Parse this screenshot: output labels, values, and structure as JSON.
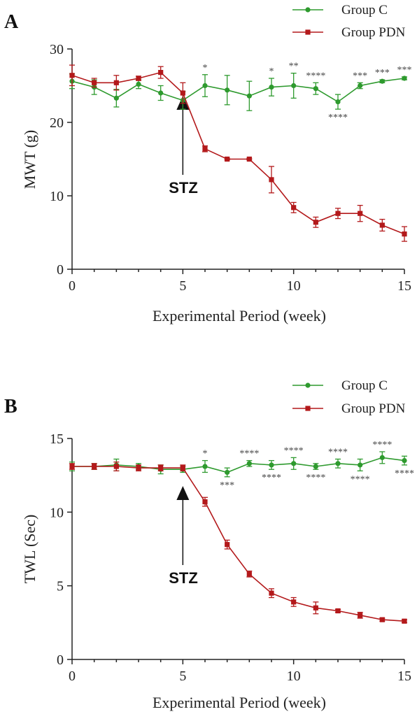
{
  "colors": {
    "group_c": "#2e9a2e",
    "group_pdn": "#b3191b",
    "axis": "#222222"
  },
  "chart_data": [
    {
      "type": "line",
      "panel": "A",
      "xlabel": "Experimental Period (week)",
      "ylabel": "MWT (g)",
      "xlim": [
        0,
        15
      ],
      "ylim": [
        0,
        30
      ],
      "xticks": [
        0,
        5,
        10,
        15
      ],
      "yticks": [
        0,
        10,
        20,
        30
      ],
      "grid": false,
      "legend_position": "top-right",
      "annotation_label": "STZ",
      "annotation_x": 5,
      "series": [
        {
          "name": "Group C",
          "marker": "circle",
          "x": [
            0,
            1,
            2,
            3,
            4,
            5,
            6,
            7,
            8,
            9,
            10,
            11,
            12,
            13,
            14,
            15
          ],
          "y": [
            25.6,
            24.8,
            23.3,
            25.2,
            24.0,
            23.0,
            25.0,
            24.4,
            23.6,
            24.8,
            25.0,
            24.6,
            22.8,
            25.0,
            25.6,
            26.0
          ],
          "err": [
            1.0,
            1.0,
            1.2,
            0.6,
            1.0,
            1.2,
            1.5,
            2.0,
            2.0,
            1.2,
            1.7,
            0.8,
            1.0,
            0.4,
            0.2,
            0.2
          ]
        },
        {
          "name": "Group PDN",
          "marker": "square",
          "x": [
            0,
            1,
            2,
            3,
            4,
            5,
            6,
            7,
            8,
            9,
            10,
            11,
            12,
            13,
            14,
            15
          ],
          "y": [
            26.4,
            25.4,
            25.4,
            26.0,
            26.8,
            24.0,
            16.4,
            15.0,
            15.0,
            12.2,
            8.4,
            6.4,
            7.6,
            7.6,
            6.0,
            4.8
          ],
          "err": [
            1.4,
            0.6,
            1.0,
            0.3,
            0.8,
            1.4,
            0.4,
            0.1,
            0.1,
            1.8,
            0.7,
            0.7,
            0.7,
            1.1,
            0.8,
            1.0
          ]
        }
      ],
      "significance": [
        {
          "x": 6,
          "text": "*",
          "pos": "above"
        },
        {
          "x": 9,
          "text": "*",
          "pos": "above"
        },
        {
          "x": 10,
          "text": "**",
          "pos": "above"
        },
        {
          "x": 11,
          "text": "****",
          "pos": "above"
        },
        {
          "x": 12,
          "text": "****",
          "pos": "below"
        },
        {
          "x": 13,
          "text": "***",
          "pos": "above"
        },
        {
          "x": 14,
          "text": "***",
          "pos": "above"
        },
        {
          "x": 15,
          "text": "***",
          "pos": "above"
        }
      ]
    },
    {
      "type": "line",
      "panel": "B",
      "xlabel": "Experimental Period (week)",
      "ylabel": "TWL (Sec)",
      "xlim": [
        0,
        15
      ],
      "ylim": [
        0,
        15
      ],
      "xticks": [
        0,
        5,
        10,
        15
      ],
      "yticks": [
        0,
        5,
        10,
        15
      ],
      "grid": false,
      "legend_position": "top-right",
      "annotation_label": "STZ",
      "annotation_x": 5,
      "series": [
        {
          "name": "Group C",
          "marker": "circle",
          "x": [
            0,
            1,
            2,
            3,
            4,
            5,
            6,
            7,
            8,
            9,
            10,
            11,
            12,
            13,
            14,
            15
          ],
          "y": [
            13.1,
            13.1,
            13.2,
            13.1,
            12.9,
            12.9,
            13.1,
            12.7,
            13.3,
            13.2,
            13.3,
            13.1,
            13.3,
            13.2,
            13.7,
            13.5
          ],
          "err": [
            0.3,
            0.2,
            0.4,
            0.2,
            0.3,
            0.2,
            0.4,
            0.3,
            0.2,
            0.3,
            0.4,
            0.2,
            0.3,
            0.4,
            0.4,
            0.3
          ]
        },
        {
          "name": "Group PDN",
          "marker": "square",
          "x": [
            0,
            1,
            2,
            3,
            4,
            5,
            6,
            7,
            8,
            9,
            10,
            11,
            12,
            13,
            14,
            15
          ],
          "y": [
            13.1,
            13.1,
            13.1,
            13.0,
            13.0,
            13.0,
            10.7,
            7.8,
            5.8,
            4.5,
            3.9,
            3.5,
            3.3,
            3.0,
            2.7,
            2.6
          ],
          "err": [
            0.2,
            0.2,
            0.3,
            0.2,
            0.2,
            0.2,
            0.3,
            0.3,
            0.2,
            0.3,
            0.3,
            0.4,
            0.1,
            0.2,
            0.1,
            0.1
          ]
        }
      ],
      "significance": [
        {
          "x": 6,
          "text": "*",
          "pos": "above"
        },
        {
          "x": 7,
          "text": "***",
          "pos": "below"
        },
        {
          "x": 8,
          "text": "****",
          "pos": "above"
        },
        {
          "x": 9,
          "text": "****",
          "pos": "below"
        },
        {
          "x": 10,
          "text": "****",
          "pos": "above"
        },
        {
          "x": 11,
          "text": "****",
          "pos": "below"
        },
        {
          "x": 12,
          "text": "****",
          "pos": "above"
        },
        {
          "x": 13,
          "text": "****",
          "pos": "below"
        },
        {
          "x": 14,
          "text": "****",
          "pos": "above"
        },
        {
          "x": 15,
          "text": "****",
          "pos": "below"
        }
      ]
    }
  ]
}
